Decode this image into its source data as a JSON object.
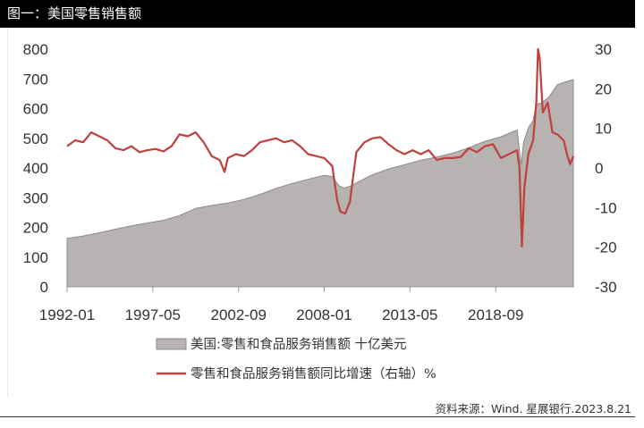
{
  "header": {
    "title": "图一：美国零售销售额"
  },
  "source": "资料来源：Wind. 星展银行.2023.8.21",
  "chart_data": {
    "type": "area+line",
    "x_tick_labels": [
      "1992-01",
      "1997-05",
      "2002-09",
      "2008-01",
      "2013-05",
      "2018-09"
    ],
    "x_tick_dates": [
      1992.0,
      1997.33,
      2002.67,
      2008.0,
      2013.33,
      2018.67
    ],
    "x_range": [
      1992.0,
      2023.5
    ],
    "left_axis": {
      "ylim": [
        0,
        800
      ],
      "ticks": [
        0,
        100,
        200,
        300,
        400,
        500,
        600,
        700,
        800
      ]
    },
    "right_axis": {
      "ylim": [
        -30,
        30
      ],
      "ticks": [
        -30,
        -20,
        -10,
        0,
        10,
        20,
        30
      ]
    },
    "series": [
      {
        "name": "美国:零售和食品服务销售额 十亿美元",
        "type": "area",
        "axis": "left",
        "color": "#b7b3b3",
        "edge_color": "#8f8b8b",
        "points": [
          [
            1992.0,
            163
          ],
          [
            1993.0,
            171
          ],
          [
            1994.0,
            182
          ],
          [
            1995.0,
            194
          ],
          [
            1996.0,
            205
          ],
          [
            1997.0,
            215
          ],
          [
            1998.0,
            224
          ],
          [
            1999.0,
            240
          ],
          [
            2000.0,
            264
          ],
          [
            2001.0,
            274
          ],
          [
            2002.0,
            282
          ],
          [
            2003.0,
            294
          ],
          [
            2004.0,
            311
          ],
          [
            2005.0,
            331
          ],
          [
            2006.0,
            348
          ],
          [
            2007.0,
            362
          ],
          [
            2008.0,
            375
          ],
          [
            2008.5,
            371
          ],
          [
            2008.9,
            341
          ],
          [
            2009.2,
            333
          ],
          [
            2009.6,
            338
          ],
          [
            2010.0,
            350
          ],
          [
            2011.0,
            377
          ],
          [
            2012.0,
            397
          ],
          [
            2013.0,
            411
          ],
          [
            2014.0,
            426
          ],
          [
            2015.0,
            437
          ],
          [
            2016.0,
            450
          ],
          [
            2017.0,
            468
          ],
          [
            2018.0,
            490
          ],
          [
            2019.0,
            505
          ],
          [
            2020.0,
            528
          ],
          [
            2020.25,
            410
          ],
          [
            2020.4,
            485
          ],
          [
            2020.7,
            535
          ],
          [
            2021.0,
            560
          ],
          [
            2021.2,
            615
          ],
          [
            2021.5,
            618
          ],
          [
            2022.0,
            640
          ],
          [
            2022.5,
            680
          ],
          [
            2023.0,
            690
          ],
          [
            2023.5,
            697
          ]
        ]
      },
      {
        "name": "零售和食品服务销售额同比增速（右轴）%",
        "type": "line",
        "axis": "right",
        "color": "#c0403c",
        "points": [
          [
            1992.0,
            5.5
          ],
          [
            1992.5,
            7.0
          ],
          [
            1993.0,
            6.5
          ],
          [
            1993.5,
            9.0
          ],
          [
            1994.0,
            8.0
          ],
          [
            1994.5,
            7.0
          ],
          [
            1995.0,
            5.0
          ],
          [
            1995.5,
            4.5
          ],
          [
            1996.0,
            5.5
          ],
          [
            1996.5,
            4.0
          ],
          [
            1997.0,
            4.5
          ],
          [
            1997.5,
            4.8
          ],
          [
            1998.0,
            4.2
          ],
          [
            1998.5,
            5.5
          ],
          [
            1999.0,
            8.5
          ],
          [
            1999.5,
            8.0
          ],
          [
            2000.0,
            9.0
          ],
          [
            2000.5,
            6.5
          ],
          [
            2001.0,
            3.0
          ],
          [
            2001.5,
            2.0
          ],
          [
            2001.8,
            -1.0
          ],
          [
            2002.0,
            2.5
          ],
          [
            2002.5,
            3.5
          ],
          [
            2003.0,
            3.0
          ],
          [
            2003.5,
            4.5
          ],
          [
            2004.0,
            6.5
          ],
          [
            2004.5,
            7.0
          ],
          [
            2005.0,
            7.5
          ],
          [
            2005.5,
            6.5
          ],
          [
            2006.0,
            7.0
          ],
          [
            2006.5,
            5.5
          ],
          [
            2007.0,
            3.5
          ],
          [
            2007.5,
            3.0
          ],
          [
            2008.0,
            2.5
          ],
          [
            2008.5,
            0.5
          ],
          [
            2008.8,
            -8.0
          ],
          [
            2009.0,
            -11.0
          ],
          [
            2009.3,
            -11.5
          ],
          [
            2009.6,
            -8.5
          ],
          [
            2010.0,
            4.0
          ],
          [
            2010.5,
            6.5
          ],
          [
            2011.0,
            7.5
          ],
          [
            2011.5,
            7.8
          ],
          [
            2012.0,
            6.0
          ],
          [
            2012.5,
            4.5
          ],
          [
            2013.0,
            3.5
          ],
          [
            2013.5,
            4.5
          ],
          [
            2014.0,
            3.5
          ],
          [
            2014.5,
            4.5
          ],
          [
            2015.0,
            2.0
          ],
          [
            2015.5,
            2.5
          ],
          [
            2016.0,
            2.5
          ],
          [
            2016.5,
            2.8
          ],
          [
            2017.0,
            5.0
          ],
          [
            2017.5,
            4.0
          ],
          [
            2018.0,
            5.5
          ],
          [
            2018.5,
            6.0
          ],
          [
            2019.0,
            2.5
          ],
          [
            2019.5,
            3.5
          ],
          [
            2020.0,
            4.5
          ],
          [
            2020.15,
            0.0
          ],
          [
            2020.3,
            -19.8
          ],
          [
            2020.45,
            -5.0
          ],
          [
            2020.7,
            3.5
          ],
          [
            2021.0,
            7.0
          ],
          [
            2021.2,
            17.0
          ],
          [
            2021.3,
            30.0
          ],
          [
            2021.4,
            28.0
          ],
          [
            2021.6,
            14.0
          ],
          [
            2021.9,
            16.5
          ],
          [
            2022.2,
            9.0
          ],
          [
            2022.5,
            8.5
          ],
          [
            2022.9,
            7.0
          ],
          [
            2023.1,
            3.5
          ],
          [
            2023.3,
            1.0
          ],
          [
            2023.5,
            3.0
          ]
        ]
      }
    ],
    "legend_placement": "bottom",
    "grid": false
  }
}
